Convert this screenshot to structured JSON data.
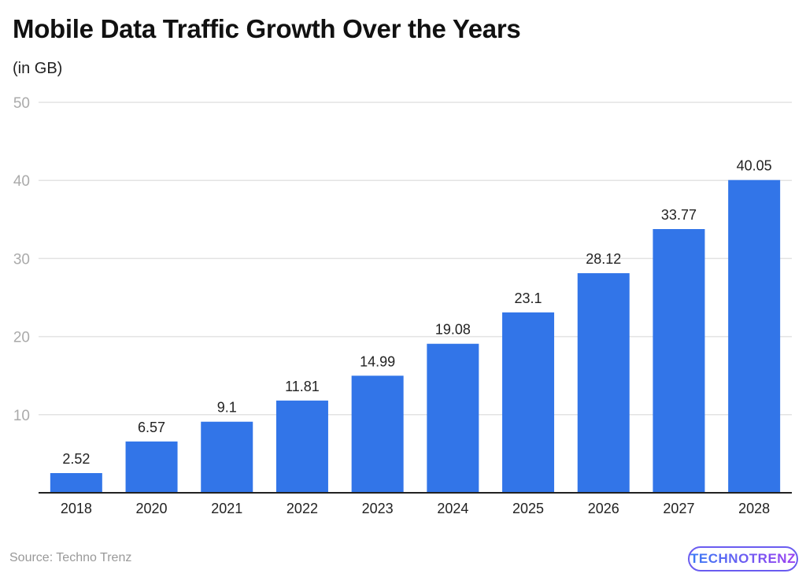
{
  "chart_data": {
    "type": "bar",
    "title": "Mobile Data Traffic Growth Over the Years",
    "subtitle": "(in GB)",
    "xlabel": "",
    "ylabel": "",
    "categories": [
      "2018",
      "2020",
      "2021",
      "2022",
      "2023",
      "2024",
      "2025",
      "2026",
      "2027",
      "2028"
    ],
    "values": [
      2.52,
      6.57,
      9.1,
      11.81,
      14.99,
      19.08,
      23.1,
      28.12,
      33.77,
      40.05
    ],
    "value_labels": [
      "2.52",
      "6.57",
      "9.1",
      "11.81",
      "14.99",
      "19.08",
      "23.1",
      "28.12",
      "33.77",
      "40.05"
    ],
    "ylim": [
      0,
      50
    ],
    "yticks": [
      "10",
      "20",
      "30",
      "40",
      "50"
    ],
    "grid": true,
    "bar_color": "#3275e8"
  },
  "source": "Source: Techno Trenz",
  "logo_text": "TECHNOTRENZ"
}
